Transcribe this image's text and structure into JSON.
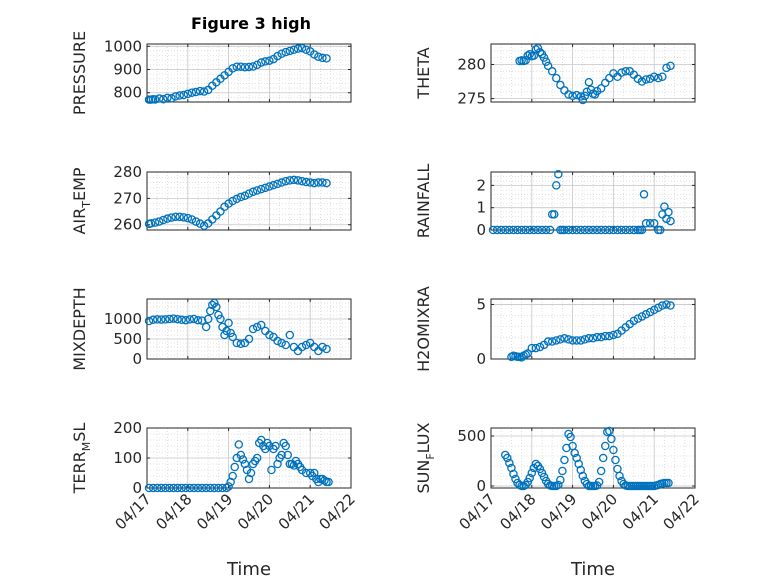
{
  "figure": {
    "title": "Figure 3 high",
    "marker_color": "#0072BD"
  },
  "chart_data": [
    {
      "type": "scatter",
      "ylabel": "PRESSURE",
      "title": "Figure 3 high",
      "xlim": [
        0,
        5
      ],
      "ylim": [
        760,
        1010
      ],
      "yticks": [
        800,
        900,
        1000
      ],
      "yticklabels": [
        "800",
        "900",
        "1000"
      ],
      "xticks": [
        0,
        1,
        2,
        3,
        4,
        5
      ],
      "xticklabels": [],
      "x": [
        0.05,
        0.1,
        0.15,
        0.2,
        0.3,
        0.4,
        0.5,
        0.6,
        0.7,
        0.8,
        0.9,
        1.0,
        1.1,
        1.2,
        1.3,
        1.4,
        1.5,
        1.6,
        1.7,
        1.8,
        1.9,
        2.0,
        2.1,
        2.2,
        2.3,
        2.4,
        2.5,
        2.6,
        2.7,
        2.8,
        2.9,
        3.0,
        3.1,
        3.2,
        3.3,
        3.4,
        3.5,
        3.6,
        3.7,
        3.8,
        3.9,
        4.0,
        4.1,
        4.2,
        4.3,
        4.4
      ],
      "y": [
        770,
        770,
        772,
        771,
        775,
        772,
        778,
        776,
        784,
        788,
        790,
        795,
        800,
        803,
        807,
        805,
        812,
        830,
        845,
        860,
        875,
        890,
        905,
        912,
        912,
        910,
        911,
        913,
        920,
        930,
        935,
        938,
        945,
        958,
        968,
        975,
        980,
        985,
        990,
        992,
        985,
        978,
        965,
        955,
        950,
        948
      ]
    },
    {
      "type": "scatter",
      "ylabel": "THETA",
      "xlim": [
        0,
        5
      ],
      "ylim": [
        274.5,
        283
      ],
      "yticks": [
        275,
        280
      ],
      "yticklabels": [
        "275",
        "280"
      ],
      "xticks": [
        0,
        1,
        2,
        3,
        4,
        5
      ],
      "xticklabels": [],
      "x": [
        0.7,
        0.75,
        0.8,
        0.85,
        0.9,
        0.95,
        1.0,
        1.05,
        1.1,
        1.15,
        1.2,
        1.25,
        1.3,
        1.35,
        1.4,
        1.5,
        1.6,
        1.7,
        1.8,
        1.9,
        2.0,
        2.1,
        2.2,
        2.25,
        2.3,
        2.35,
        2.4,
        2.45,
        2.5,
        2.55,
        2.6,
        2.7,
        2.8,
        2.9,
        3.0,
        3.1,
        3.2,
        3.3,
        3.4,
        3.5,
        3.6,
        3.7,
        3.8,
        3.9,
        4.0,
        4.1,
        4.2,
        4.3,
        4.4
      ],
      "y": [
        280.5,
        280.6,
        280.5,
        280.6,
        281.3,
        281.5,
        281.2,
        281.3,
        282.2,
        282.4,
        281.8,
        281.5,
        281.0,
        280.4,
        279.8,
        279.0,
        278.0,
        277.0,
        276.2,
        275.6,
        275.4,
        275.5,
        275.3,
        274.8,
        275.4,
        276.0,
        277.4,
        276.3,
        275.7,
        275.6,
        276.1,
        276.5,
        277.3,
        278.0,
        278.7,
        278.2,
        278.8,
        279.0,
        279.0,
        278.5,
        277.9,
        277.5,
        277.8,
        277.9,
        278.2,
        278.0,
        278.2,
        279.5,
        279.8
      ]
    },
    {
      "type": "scatter",
      "ylabel": "AIR_TEMP",
      "xlim": [
        0,
        5
      ],
      "ylim": [
        258,
        280
      ],
      "yticks": [
        260,
        270,
        280
      ],
      "yticklabels": [
        "260",
        "270",
        "280"
      ],
      "xticks": [
        0,
        1,
        2,
        3,
        4,
        5
      ],
      "xticklabels": [],
      "x": [
        0.05,
        0.1,
        0.2,
        0.3,
        0.4,
        0.5,
        0.6,
        0.7,
        0.8,
        0.9,
        1.0,
        1.1,
        1.2,
        1.3,
        1.4,
        1.5,
        1.6,
        1.7,
        1.8,
        1.9,
        2.0,
        2.1,
        2.2,
        2.3,
        2.4,
        2.5,
        2.6,
        2.7,
        2.8,
        2.9,
        3.0,
        3.1,
        3.2,
        3.3,
        3.4,
        3.5,
        3.6,
        3.7,
        3.8,
        3.9,
        4.0,
        4.1,
        4.2,
        4.3,
        4.4
      ],
      "y": [
        260.3,
        260.5,
        260.8,
        261.2,
        261.8,
        262.3,
        262.7,
        263.0,
        263.0,
        262.8,
        262.5,
        262.0,
        261.2,
        260.4,
        259.6,
        260.5,
        262.0,
        263.5,
        265.0,
        266.8,
        268.0,
        269.0,
        269.8,
        270.5,
        271.0,
        271.8,
        272.5,
        273.0,
        273.5,
        274.0,
        274.5,
        275.0,
        275.5,
        276.0,
        276.5,
        276.8,
        277.0,
        276.8,
        276.5,
        276.2,
        276.0,
        275.8,
        276.0,
        276.0,
        275.8
      ]
    },
    {
      "type": "scatter",
      "ylabel": "RAINFALL",
      "xlim": [
        0,
        5
      ],
      "ylim": [
        0,
        2.6
      ],
      "yticks": [
        0,
        1,
        2
      ],
      "yticklabels": [
        "0",
        "1",
        "2"
      ],
      "xticks": [
        0,
        1,
        2,
        3,
        4,
        5
      ],
      "xticklabels": [],
      "x": [
        0.05,
        0.15,
        0.25,
        0.35,
        0.45,
        0.55,
        0.65,
        0.75,
        0.85,
        0.95,
        1.05,
        1.15,
        1.25,
        1.35,
        1.45,
        1.5,
        1.55,
        1.6,
        1.65,
        1.7,
        1.75,
        1.8,
        1.9,
        2.0,
        2.1,
        2.2,
        2.3,
        2.4,
        2.5,
        2.6,
        2.7,
        2.8,
        2.9,
        3.0,
        3.1,
        3.2,
        3.3,
        3.4,
        3.5,
        3.6,
        3.65,
        3.7,
        3.75,
        3.8,
        3.9,
        4.0,
        4.1,
        4.15,
        4.2,
        4.25,
        4.3,
        4.35,
        4.4
      ],
      "y": [
        0,
        0,
        0,
        0,
        0,
        0,
        0,
        0,
        0,
        0,
        0,
        0,
        0,
        0,
        0,
        0.7,
        0.7,
        2.0,
        2.5,
        0,
        0,
        0,
        0,
        0,
        0,
        0,
        0,
        0,
        0,
        0,
        0,
        0,
        0,
        0,
        0,
        0,
        0,
        0,
        0,
        0,
        0,
        0,
        1.6,
        0.3,
        0.3,
        0.3,
        0,
        0,
        0.7,
        1.05,
        0.5,
        0.8,
        0.4
      ]
    },
    {
      "type": "scatter",
      "ylabel": "MIXDEPTH",
      "xlim": [
        0,
        5
      ],
      "ylim": [
        0,
        1500
      ],
      "yticks": [
        0,
        500,
        1000
      ],
      "yticklabels": [
        "0",
        "500",
        "1000"
      ],
      "xticks": [
        0,
        1,
        2,
        3,
        4,
        5
      ],
      "xticklabels": [],
      "x": [
        0.05,
        0.15,
        0.25,
        0.35,
        0.45,
        0.55,
        0.65,
        0.75,
        0.85,
        0.95,
        1.05,
        1.15,
        1.25,
        1.35,
        1.45,
        1.5,
        1.55,
        1.6,
        1.65,
        1.7,
        1.75,
        1.8,
        1.85,
        1.9,
        1.95,
        2.0,
        2.05,
        2.1,
        2.2,
        2.3,
        2.4,
        2.5,
        2.6,
        2.7,
        2.8,
        2.9,
        3.0,
        3.1,
        3.2,
        3.3,
        3.4,
        3.5,
        3.6,
        3.7,
        3.8,
        3.9,
        4.0,
        4.1,
        4.2,
        4.3,
        4.4
      ],
      "y": [
        950,
        980,
        990,
        985,
        990,
        1000,
        1010,
        995,
        980,
        970,
        990,
        1000,
        970,
        960,
        800,
        1000,
        1200,
        1350,
        1400,
        1300,
        1100,
        1000,
        800,
        600,
        700,
        900,
        650,
        550,
        400,
        380,
        400,
        500,
        750,
        800,
        850,
        700,
        600,
        550,
        450,
        400,
        350,
        600,
        300,
        200,
        300,
        350,
        400,
        300,
        200,
        300,
        250
      ]
    },
    {
      "type": "scatter",
      "ylabel": "H2OMIXRA",
      "xlim": [
        0,
        5
      ],
      "ylim": [
        0,
        5.5
      ],
      "yticks": [
        0,
        5
      ],
      "yticklabels": [
        "0",
        "5"
      ],
      "xticks": [
        0,
        1,
        2,
        3,
        4,
        5
      ],
      "xticklabels": [],
      "x": [
        0.5,
        0.55,
        0.6,
        0.65,
        0.7,
        0.75,
        0.8,
        0.85,
        0.9,
        1.0,
        1.1,
        1.2,
        1.3,
        1.4,
        1.5,
        1.6,
        1.7,
        1.8,
        1.9,
        2.0,
        2.1,
        2.2,
        2.3,
        2.4,
        2.5,
        2.6,
        2.7,
        2.8,
        2.9,
        3.0,
        3.1,
        3.2,
        3.3,
        3.4,
        3.5,
        3.6,
        3.7,
        3.8,
        3.9,
        4.0,
        4.1,
        4.2,
        4.3,
        4.4
      ],
      "y": [
        0.2,
        0.3,
        0.25,
        0.2,
        0.2,
        0.15,
        0.3,
        0.4,
        0.5,
        1.0,
        1.0,
        1.1,
        1.3,
        1.6,
        1.6,
        1.7,
        1.8,
        1.9,
        1.8,
        1.7,
        1.7,
        1.7,
        1.8,
        1.9,
        1.9,
        2.0,
        2.0,
        2.1,
        2.1,
        2.2,
        2.3,
        2.6,
        2.9,
        3.2,
        3.5,
        3.7,
        3.9,
        4.1,
        4.3,
        4.5,
        4.7,
        4.9,
        5.0,
        4.9
      ]
    },
    {
      "type": "scatter",
      "ylabel": "TERR_MSL",
      "xlim": [
        0,
        5
      ],
      "ylim": [
        0,
        200
      ],
      "yticks": [
        0,
        100,
        200
      ],
      "yticklabels": [
        "0",
        "100",
        "200"
      ],
      "xticks": [
        0,
        1,
        2,
        3,
        4,
        5
      ],
      "xticklabels": [
        "04/17",
        "04/18",
        "04/19",
        "04/20",
        "04/21",
        "04/22"
      ],
      "x": [
        0.05,
        0.15,
        0.25,
        0.35,
        0.45,
        0.55,
        0.65,
        0.75,
        0.85,
        0.95,
        1.05,
        1.15,
        1.25,
        1.35,
        1.45,
        1.55,
        1.65,
        1.75,
        1.85,
        1.95,
        2.0,
        2.05,
        2.1,
        2.15,
        2.2,
        2.25,
        2.3,
        2.35,
        2.4,
        2.45,
        2.5,
        2.55,
        2.6,
        2.65,
        2.7,
        2.75,
        2.8,
        2.85,
        2.9,
        2.95,
        3.0,
        3.05,
        3.1,
        3.15,
        3.2,
        3.25,
        3.3,
        3.35,
        3.4,
        3.45,
        3.5,
        3.55,
        3.6,
        3.65,
        3.7,
        3.75,
        3.8,
        3.9,
        4.0,
        4.05,
        4.1,
        4.15,
        4.2,
        4.25,
        4.3,
        4.35,
        4.4,
        4.45
      ],
      "y": [
        0,
        0,
        0,
        0,
        0,
        0,
        0,
        0,
        0,
        0,
        0,
        0,
        0,
        0,
        0,
        0,
        0,
        0,
        0,
        0,
        5,
        20,
        40,
        70,
        100,
        145,
        110,
        95,
        80,
        60,
        30,
        50,
        80,
        90,
        100,
        150,
        160,
        140,
        130,
        150,
        140,
        60,
        130,
        140,
        80,
        100,
        110,
        150,
        140,
        110,
        80,
        80,
        75,
        90,
        80,
        70,
        60,
        50,
        50,
        40,
        50,
        30,
        20,
        30,
        30,
        25,
        20,
        20
      ]
    },
    {
      "type": "scatter",
      "ylabel": "SUN_FLUX",
      "xlim": [
        0,
        5
      ],
      "ylim": [
        -20,
        580
      ],
      "yticks": [
        0,
        500
      ],
      "yticklabels": [
        "0",
        "500"
      ],
      "xticks": [
        0,
        1,
        2,
        3,
        4,
        5
      ],
      "xticklabels": [
        "04/17",
        "04/18",
        "04/19",
        "04/20",
        "04/21",
        "04/22"
      ],
      "x": [
        0.35,
        0.4,
        0.45,
        0.5,
        0.55,
        0.6,
        0.65,
        0.7,
        0.75,
        0.8,
        0.85,
        0.9,
        0.95,
        1.0,
        1.05,
        1.1,
        1.15,
        1.2,
        1.25,
        1.3,
        1.35,
        1.4,
        1.45,
        1.5,
        1.55,
        1.6,
        1.65,
        1.7,
        1.75,
        1.8,
        1.85,
        1.9,
        1.95,
        2.0,
        2.05,
        2.1,
        2.15,
        2.2,
        2.25,
        2.3,
        2.35,
        2.4,
        2.45,
        2.5,
        2.55,
        2.6,
        2.65,
        2.7,
        2.75,
        2.8,
        2.85,
        2.9,
        2.95,
        3.0,
        3.05,
        3.1,
        3.15,
        3.2,
        3.25,
        3.3,
        3.35,
        3.4,
        3.45,
        3.5,
        3.55,
        3.6,
        3.65,
        3.7,
        3.75,
        3.8,
        3.85,
        3.9,
        3.95,
        4.0,
        4.05,
        4.1,
        4.15,
        4.2,
        4.25,
        4.3,
        4.35
      ],
      "y": [
        310,
        280,
        230,
        180,
        120,
        70,
        30,
        10,
        0,
        0,
        10,
        40,
        80,
        130,
        180,
        220,
        200,
        170,
        130,
        90,
        50,
        20,
        5,
        0,
        0,
        0,
        10,
        60,
        150,
        260,
        380,
        520,
        490,
        400,
        330,
        280,
        220,
        160,
        100,
        50,
        20,
        0,
        0,
        0,
        0,
        5,
        40,
        150,
        280,
        400,
        540,
        550,
        470,
        360,
        260,
        170,
        100,
        50,
        20,
        5,
        0,
        0,
        0,
        0,
        0,
        0,
        0,
        0,
        0,
        0,
        0,
        0,
        0,
        0,
        5,
        10,
        20,
        25,
        30,
        30,
        30
      ]
    }
  ]
}
